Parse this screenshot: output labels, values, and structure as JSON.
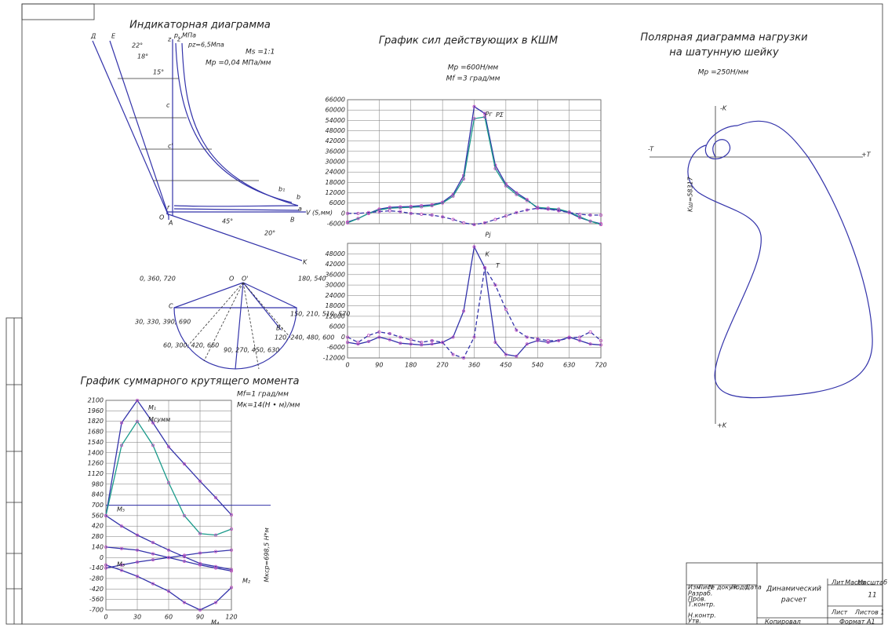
{
  "chart_data": [
    {
      "type": "line",
      "title": "График сил действующих в КШМ",
      "subtitle": [
        "Мр =600Н/мм",
        "Mf =3 град/мм"
      ],
      "x": [
        0,
        30,
        60,
        90,
        120,
        150,
        180,
        210,
        240,
        270,
        300,
        330,
        360,
        390,
        420,
        450,
        480,
        510,
        540,
        570,
        600,
        630,
        660,
        690,
        720
      ],
      "xlim": [
        0,
        720
      ],
      "ylim": [
        -6000,
        66000
      ],
      "yticks": [
        -6000,
        0,
        6000,
        12000,
        18000,
        24000,
        30000,
        36000,
        42000,
        48000,
        54000,
        60000,
        66000
      ],
      "grid": true,
      "series": [
        {
          "name": "Pг",
          "color": "#3333aa",
          "style": "solid",
          "values": [
            -5000,
            -3000,
            0,
            2500,
            3500,
            3800,
            4000,
            4500,
            5000,
            6500,
            11000,
            22000,
            62000,
            58000,
            28000,
            17000,
            12000,
            8000,
            3000,
            2500,
            2000,
            500,
            -2500,
            -4500,
            -6000
          ]
        },
        {
          "name": "PΣ",
          "color": "#1a9a8a",
          "style": "solid",
          "values": [
            -5500,
            -3000,
            0,
            2000,
            3000,
            3300,
            3500,
            3800,
            4500,
            6000,
            10000,
            20000,
            55000,
            56000,
            26000,
            16000,
            11000,
            7500,
            3500,
            3000,
            2500,
            800,
            -2000,
            -4500,
            -6500
          ]
        },
        {
          "name": "Pj",
          "color": "#3333aa",
          "style": "dashed",
          "values": [
            0,
            0,
            500,
            1000,
            1500,
            1000,
            0,
            -500,
            -1000,
            -2000,
            -3500,
            -5500,
            -6500,
            -5500,
            -3500,
            -1500,
            500,
            2000,
            3000,
            2500,
            1500,
            500,
            -500,
            -1000,
            -1000
          ]
        }
      ]
    },
    {
      "type": "line",
      "x": [
        0,
        30,
        60,
        90,
        120,
        150,
        180,
        210,
        240,
        270,
        300,
        330,
        360,
        390,
        420,
        450,
        480,
        510,
        540,
        570,
        600,
        630,
        660,
        690,
        720
      ],
      "xlim": [
        0,
        720
      ],
      "xticks": [
        0,
        90,
        180,
        270,
        360,
        450,
        540,
        630,
        720
      ],
      "ylim": [
        -12000,
        54000
      ],
      "yticks": [
        -12000,
        -6000,
        0,
        6000,
        12000,
        18000,
        24000,
        30000,
        36000,
        42000,
        48000
      ],
      "grid": true,
      "series": [
        {
          "name": "K",
          "color": "#3333aa",
          "style": "solid",
          "values": [
            -3000,
            -4000,
            -2500,
            0,
            -1500,
            -3500,
            -4000,
            -4500,
            -4000,
            -3000,
            0,
            15000,
            52000,
            40000,
            -3000,
            -10000,
            -11000,
            -4000,
            -2000,
            -3000,
            -2000,
            0,
            -2000,
            -4000,
            -4500
          ]
        },
        {
          "name": "T",
          "color": "#3333aa",
          "style": "dashed",
          "values": [
            0,
            -3000,
            1000,
            3000,
            2000,
            0,
            -1500,
            -3000,
            -2000,
            -3000,
            -10000,
            -12000,
            0,
            40000,
            30000,
            16000,
            4000,
            0,
            -1000,
            -2000,
            -2000,
            -500,
            0,
            3000,
            -2000
          ]
        }
      ]
    },
    {
      "type": "line",
      "title": "График суммарного крутящего момента",
      "subtitle": [
        "Mf=1 град/мм",
        "Mк=14(Н • м)/мм"
      ],
      "x": [
        0,
        15,
        30,
        45,
        60,
        75,
        90,
        105,
        120
      ],
      "xlim": [
        0,
        120
      ],
      "xticks": [
        0,
        30,
        60,
        90,
        120
      ],
      "ylim": [
        -700,
        2100
      ],
      "yticks": [
        -700,
        -560,
        -420,
        -280,
        -140,
        0,
        140,
        280,
        420,
        560,
        700,
        840,
        980,
        1120,
        1260,
        1400,
        1540,
        1680,
        1820,
        1960,
        2100
      ],
      "grid": true,
      "mean": 698.5,
      "annotation": "Mкср=698,5 Н*м",
      "series": [
        {
          "name": "M₁",
          "color": "#3333aa",
          "style": "solid",
          "values": [
            560,
            1800,
            2100,
            1800,
            1480,
            1250,
            1020,
            800,
            570
          ]
        },
        {
          "name": "Mсумм",
          "color": "#1a9a8a",
          "style": "solid",
          "values": [
            560,
            1500,
            1820,
            1500,
            1000,
            560,
            320,
            300,
            380
          ]
        },
        {
          "name": "M₂",
          "color": "#3333aa",
          "style": "solid",
          "values": [
            140,
            120,
            100,
            50,
            0,
            -50,
            -100,
            -140,
            -180
          ]
        },
        {
          "name": "M₃",
          "color": "#3333aa",
          "style": "solid",
          "values": [
            -140,
            -100,
            -60,
            -30,
            0,
            30,
            60,
            80,
            100
          ]
        },
        {
          "name": "M₄",
          "color": "#3333aa",
          "style": "solid",
          "values": [
            -100,
            -170,
            -250,
            -350,
            -450,
            -600,
            -700,
            -600,
            -400
          ]
        },
        {
          "name": "M₅",
          "color": "#3333aa",
          "style": "solid",
          "values": [
            560,
            420,
            300,
            200,
            100,
            10,
            -80,
            -120,
            -160
          ]
        }
      ]
    }
  ],
  "indicator": {
    "title": "Индикаторная диаграмма",
    "scale": [
      "Ms =1:1",
      "Мр =0,04 МПа/мм"
    ],
    "axis_p": "p, МПа",
    "pz": "pz=6,5Mпа",
    "axis_v": "V (S,мм)",
    "angles": [
      "22°",
      "18°",
      "15°",
      "45°",
      "20°"
    ],
    "points": [
      "Д",
      "E",
      "z",
      "z'",
      "c",
      "c'",
      "b",
      "b₁",
      "a",
      "r",
      "O",
      "A",
      "B",
      "K"
    ]
  },
  "brick": {
    "labels": [
      "0, 360, 720",
      "180, 540",
      "30, 330, 390, 690",
      "150, 210, 510, 570",
      "60, 300, 420, 660",
      "120, 240, 480, 600",
      "90, 270, 450, 630",
      "O",
      "O'",
      "C",
      "B₁"
    ]
  },
  "polar": {
    "title": [
      "Полярная диаграмма нагрузки",
      "на шатунную шейку"
    ],
    "scale": "Мр =250Н/мм",
    "axes": [
      "-K",
      "+T",
      "-T",
      "+K"
    ],
    "k": "Kш=58317"
  },
  "title_block": {
    "name": [
      "Динамический",
      "расчет"
    ],
    "sheet_no": "11",
    "cols": [
      "Лит",
      "Масса",
      "Масштаб"
    ],
    "sheets": [
      "Лист",
      "Листов 1"
    ],
    "rows": [
      "Изм",
      "Лист",
      "№ докум.",
      "Подп.",
      "Дата",
      "Разраб.",
      "Пров.",
      "Т.контр.",
      "Н.контр.",
      "Утв."
    ],
    "copied": "Копировал",
    "format": "Формат   A1"
  }
}
